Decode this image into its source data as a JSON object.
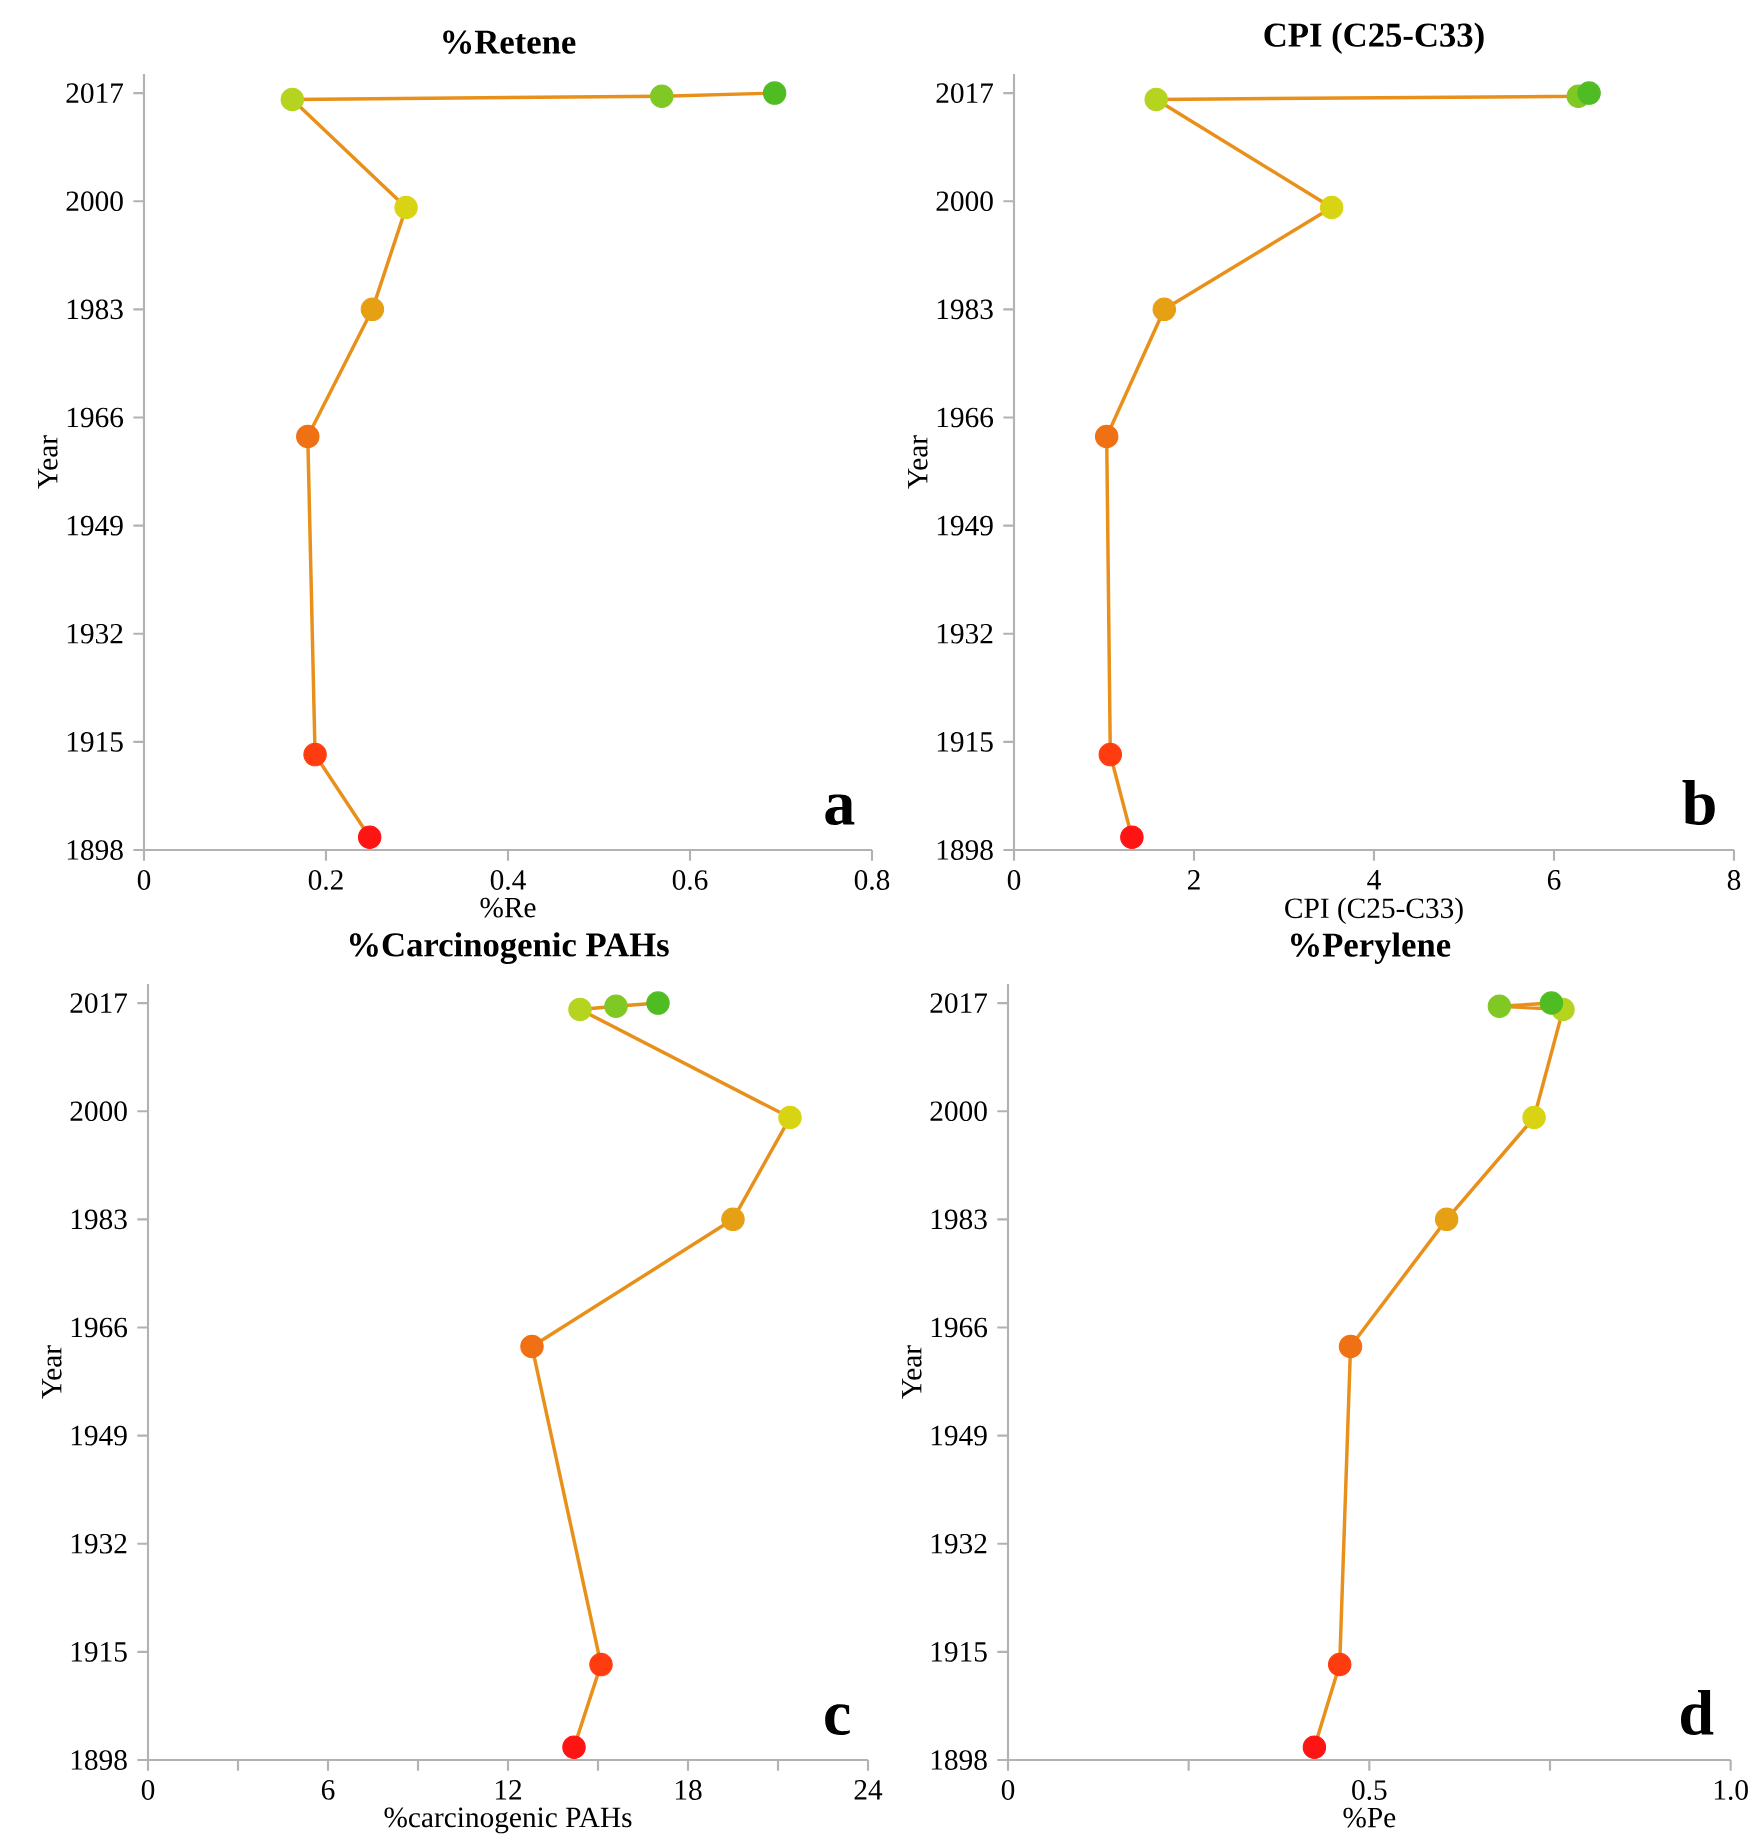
{
  "chart_data": [
    {
      "type": "line",
      "title": "%Retene",
      "color": "#e8901a",
      "xlabel": "%Re",
      "ylabel": "Year",
      "annotations": [
        "a"
      ],
      "marker": "circle",
      "x": [
        0.248,
        0.188,
        0.18,
        0.251,
        0.288,
        0.163,
        0.569,
        0.693
      ],
      "values": [
        1900,
        1913,
        1963,
        1983,
        1999,
        2016,
        2016.5,
        2017
      ],
      "colors": [
        "#ff1414",
        "#ff3c10",
        "#f07014",
        "#e6a014",
        "#d8d414",
        "#b4d420",
        "#80c824",
        "#50bc24"
      ],
      "xlim": [
        0,
        0.8
      ],
      "xticks": [
        0,
        0.2,
        0.4,
        0.6,
        0.8
      ],
      "ylim": [
        1898,
        2020
      ],
      "yticks": [
        1898,
        1915,
        1932,
        1949,
        1966,
        1983,
        2000,
        2017
      ]
    },
    {
      "type": "line",
      "title": "CPI (C25-C33)",
      "color": "#e8901a",
      "xlabel": "CPI (C25-C33)",
      "ylabel": "Year",
      "annotations": [
        "b"
      ],
      "marker": "circle",
      "x": [
        1.31,
        1.07,
        1.03,
        1.67,
        3.53,
        1.58,
        6.27,
        6.39
      ],
      "values": [
        1900,
        1913,
        1963,
        1983,
        1999,
        2016,
        2016.5,
        2017
      ],
      "colors": [
        "#ff1414",
        "#ff3c10",
        "#f07014",
        "#e6a014",
        "#d8d414",
        "#b4d420",
        "#80c824",
        "#50bc24"
      ],
      "xlim": [
        0,
        8
      ],
      "xticks": [
        0,
        2,
        4,
        6,
        8
      ],
      "ylim": [
        1898,
        2020
      ],
      "yticks": [
        1898,
        1915,
        1932,
        1949,
        1966,
        1983,
        2000,
        2017
      ]
    },
    {
      "type": "line",
      "title": "%Carcinogenic PAHs",
      "color": "#e8901a",
      "xlabel": "%carcinogenic PAHs",
      "ylabel": "Year",
      "annotations": [
        "c"
      ],
      "marker": "circle",
      "x": [
        14.2,
        15.1,
        12.8,
        19.5,
        21.4,
        14.4,
        15.6,
        17.0
      ],
      "values": [
        1900,
        1913,
        1963,
        1983,
        1999,
        2016,
        2016.5,
        2017
      ],
      "colors": [
        "#ff1414",
        "#ff3c10",
        "#f07014",
        "#e6a014",
        "#d8d414",
        "#b4d420",
        "#80c824",
        "#50bc24"
      ],
      "xlim": [
        0,
        24
      ],
      "xticks": [
        0,
        {
          "value": 3,
          "label": null
        },
        6,
        {
          "value": 9,
          "label": null
        },
        12,
        {
          "value": 15,
          "label": null
        },
        18,
        {
          "value": 21,
          "label": null
        },
        24
      ],
      "ylim": [
        1898,
        2020
      ],
      "yticks": [
        1898,
        1915,
        1932,
        1949,
        1966,
        1983,
        2000,
        2017
      ]
    },
    {
      "type": "line",
      "title": "%Perylene",
      "color": "#e8901a",
      "xlabel": "%Pe",
      "ylabel": "Year",
      "annotations": [
        "d"
      ],
      "marker": "circle",
      "x": [
        0.424,
        0.459,
        0.474,
        0.607,
        0.728,
        0.768,
        0.68,
        0.752
      ],
      "values": [
        1900,
        1913,
        1963,
        1983,
        1999,
        2016,
        2016.5,
        2017
      ],
      "colors": [
        "#ff1414",
        "#ff3c10",
        "#f07014",
        "#e6a014",
        "#d8d414",
        "#b4d420",
        "#80c824",
        "#50bc24"
      ],
      "xlim": [
        0,
        1
      ],
      "xticks": [
        0,
        {
          "value": 0.25,
          "label": null
        },
        0.5,
        {
          "value": 0.75,
          "label": null
        },
        {
          "value": 1,
          "label": "1.0"
        }
      ],
      "ylim": [
        1898,
        2020
      ],
      "yticks": [
        1898,
        1915,
        1932,
        1949,
        1966,
        1983,
        2000,
        2017
      ]
    }
  ]
}
